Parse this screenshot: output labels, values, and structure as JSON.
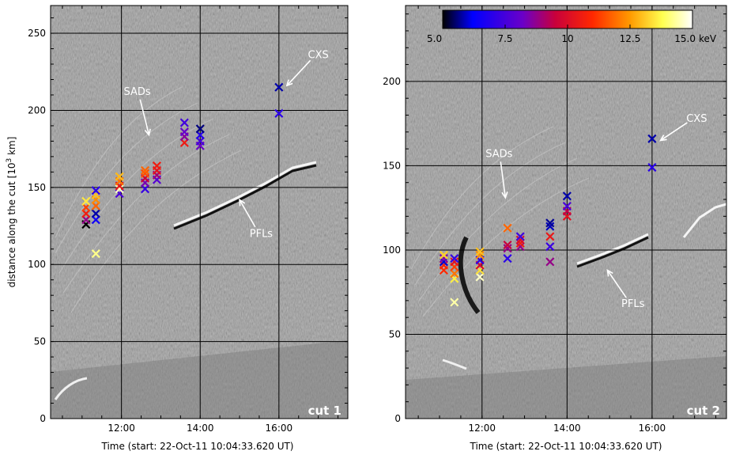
{
  "figure": {
    "colorbar": {
      "ticks": [
        "5.0",
        "7.5",
        "10",
        "12.5",
        "15.0"
      ],
      "unit": "keV",
      "range": [
        5.0,
        15.0
      ]
    }
  },
  "chart_data": [
    {
      "type": "scatter",
      "panel_label": "cut 1",
      "xlabel": "Time (start: 22-Oct-11 10:04:33.620 UT)",
      "ylabel_parts": {
        "main": "distance along the cut [10",
        "sup": "3",
        "end": " km]"
      },
      "x_ticks": [
        "12:00",
        "14:00",
        "16:00"
      ],
      "y_ticks": [
        "0",
        "50",
        "100",
        "150",
        "200",
        "250"
      ],
      "xlim_hours": [
        10.2,
        17.75
      ],
      "ylim": [
        0,
        268
      ],
      "grid": true,
      "background": "running-difference image (grayscale)",
      "annotations": [
        {
          "text": "CXS",
          "text_at": [
            17.0,
            236
          ],
          "arrow_to": [
            16.2,
            216
          ]
        },
        {
          "text": "SADs",
          "text_at": [
            12.4,
            212
          ],
          "arrow_to": [
            12.7,
            184
          ]
        },
        {
          "text": "PFLs",
          "text_at": [
            15.55,
            120
          ],
          "arrow_to": [
            15.0,
            142
          ]
        }
      ],
      "points": [
        {
          "t": 11.1,
          "d": 126,
          "keV": 5.0
        },
        {
          "t": 11.1,
          "d": 129,
          "keV": 8.8
        },
        {
          "t": 11.1,
          "d": 133,
          "keV": 10.6
        },
        {
          "t": 11.1,
          "d": 137,
          "keV": 11.3
        },
        {
          "t": 11.1,
          "d": 141,
          "keV": 13.5
        },
        {
          "t": 11.35,
          "d": 107,
          "keV": 14.2
        },
        {
          "t": 11.35,
          "d": 129,
          "keV": 6.5
        },
        {
          "t": 11.35,
          "d": 133,
          "keV": 5.8
        },
        {
          "t": 11.35,
          "d": 138,
          "keV": 11.8
        },
        {
          "t": 11.35,
          "d": 142,
          "keV": 12.3
        },
        {
          "t": 11.35,
          "d": 145,
          "keV": 13.0
        },
        {
          "t": 11.35,
          "d": 148,
          "keV": 7.0
        },
        {
          "t": 11.95,
          "d": 146,
          "keV": 7.6
        },
        {
          "t": 11.95,
          "d": 149,
          "keV": 14.6
        },
        {
          "t": 11.95,
          "d": 151,
          "keV": 10.4
        },
        {
          "t": 11.95,
          "d": 154,
          "keV": 12.0
        },
        {
          "t": 11.95,
          "d": 157,
          "keV": 12.9
        },
        {
          "t": 12.6,
          "d": 149,
          "keV": 7.2
        },
        {
          "t": 12.6,
          "d": 153,
          "keV": 8.4
        },
        {
          "t": 12.6,
          "d": 156,
          "keV": 9.6
        },
        {
          "t": 12.6,
          "d": 159,
          "keV": 11.5
        },
        {
          "t": 12.6,
          "d": 161,
          "keV": 11.8
        },
        {
          "t": 12.9,
          "d": 155,
          "keV": 7.8
        },
        {
          "t": 12.9,
          "d": 158,
          "keV": 9.0
        },
        {
          "t": 12.9,
          "d": 161,
          "keV": 10.2
        },
        {
          "t": 12.9,
          "d": 164,
          "keV": 10.6
        },
        {
          "t": 13.6,
          "d": 179,
          "keV": 10.5
        },
        {
          "t": 13.6,
          "d": 183,
          "keV": 8.6
        },
        {
          "t": 13.6,
          "d": 186,
          "keV": 8.1
        },
        {
          "t": 13.6,
          "d": 192,
          "keV": 7.4
        },
        {
          "t": 14.0,
          "d": 177,
          "keV": 8.2
        },
        {
          "t": 14.0,
          "d": 180,
          "keV": 7.5
        },
        {
          "t": 14.0,
          "d": 184,
          "keV": 6.9
        },
        {
          "t": 14.0,
          "d": 188,
          "keV": 5.6
        },
        {
          "t": 16.0,
          "d": 198,
          "keV": 7.0
        },
        {
          "t": 16.0,
          "d": 215,
          "keV": 5.8
        }
      ]
    },
    {
      "type": "scatter",
      "panel_label": "cut 2",
      "xlabel": "Time (start: 22-Oct-11 10:04:33.620 UT)",
      "x_ticks": [
        "12:00",
        "14:00",
        "16:00"
      ],
      "y_ticks": [
        "0",
        "50",
        "100",
        "150",
        "200"
      ],
      "xlim_hours": [
        10.2,
        17.75
      ],
      "ylim": [
        0,
        245
      ],
      "grid": true,
      "background": "running-difference image (grayscale)",
      "annotations": [
        {
          "text": "CXS",
          "text_at": [
            17.05,
            178
          ],
          "arrow_to": [
            16.2,
            165
          ]
        },
        {
          "text": "SADs",
          "text_at": [
            12.4,
            157
          ],
          "arrow_to": [
            12.55,
            131
          ]
        },
        {
          "text": "PFLs",
          "text_at": [
            15.55,
            68
          ],
          "arrow_to": [
            14.95,
            88
          ]
        }
      ],
      "points": [
        {
          "t": 11.1,
          "d": 88,
          "keV": 11.0
        },
        {
          "t": 11.1,
          "d": 91,
          "keV": 10.8
        },
        {
          "t": 11.1,
          "d": 93,
          "keV": 6.0
        },
        {
          "t": 11.1,
          "d": 95,
          "keV": 8.5
        },
        {
          "t": 11.1,
          "d": 97,
          "keV": 13.2
        },
        {
          "t": 11.35,
          "d": 69,
          "keV": 14.4
        },
        {
          "t": 11.35,
          "d": 83,
          "keV": 13.6
        },
        {
          "t": 11.35,
          "d": 86,
          "keV": 12.0
        },
        {
          "t": 11.35,
          "d": 90,
          "keV": 11.3
        },
        {
          "t": 11.35,
          "d": 93,
          "keV": 10.2
        },
        {
          "t": 11.35,
          "d": 95,
          "keV": 7.2
        },
        {
          "t": 11.95,
          "d": 84,
          "keV": 14.6
        },
        {
          "t": 11.95,
          "d": 88,
          "keV": 13.4
        },
        {
          "t": 11.95,
          "d": 91,
          "keV": 9.8
        },
        {
          "t": 11.95,
          "d": 94,
          "keV": 7.0
        },
        {
          "t": 11.95,
          "d": 97,
          "keV": 12.3
        },
        {
          "t": 11.95,
          "d": 99,
          "keV": 13.0
        },
        {
          "t": 12.6,
          "d": 95,
          "keV": 7.0
        },
        {
          "t": 12.6,
          "d": 101,
          "keV": 8.8
        },
        {
          "t": 12.6,
          "d": 103,
          "keV": 9.5
        },
        {
          "t": 12.6,
          "d": 113,
          "keV": 11.8
        },
        {
          "t": 12.9,
          "d": 102,
          "keV": 8.8
        },
        {
          "t": 12.9,
          "d": 104,
          "keV": 10.6
        },
        {
          "t": 12.9,
          "d": 106,
          "keV": 10.0
        },
        {
          "t": 12.9,
          "d": 108,
          "keV": 7.4
        },
        {
          "t": 13.6,
          "d": 93,
          "keV": 8.8
        },
        {
          "t": 13.6,
          "d": 102,
          "keV": 7.3
        },
        {
          "t": 13.6,
          "d": 108,
          "keV": 10.4
        },
        {
          "t": 13.6,
          "d": 114,
          "keV": 5.9
        },
        {
          "t": 13.6,
          "d": 116,
          "keV": 5.7
        },
        {
          "t": 14.0,
          "d": 120,
          "keV": 10.2
        },
        {
          "t": 14.0,
          "d": 123,
          "keV": 9.4
        },
        {
          "t": 14.0,
          "d": 126,
          "keV": 7.6
        },
        {
          "t": 14.0,
          "d": 132,
          "keV": 5.8
        },
        {
          "t": 16.0,
          "d": 149,
          "keV": 7.0
        },
        {
          "t": 16.0,
          "d": 166,
          "keV": 5.8
        }
      ]
    }
  ]
}
